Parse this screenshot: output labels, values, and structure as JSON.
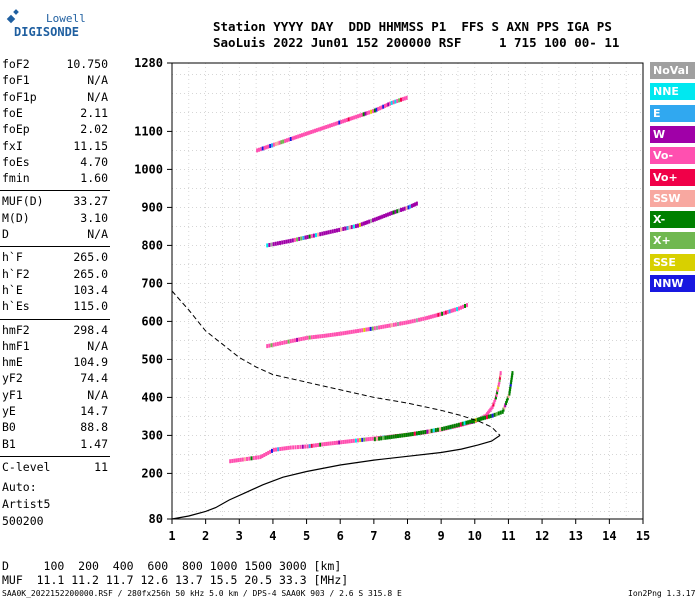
{
  "logo": {
    "line1": "Lowell",
    "line2": "DIGISONDE"
  },
  "header": {
    "line1": "Station YYYY DAY  DDD HHMMSS P1  FFS S AXN PPS IGA PS",
    "line2": "SaoLuis 2022 Jun01 152 200000 RSF     1 715 100 00- 11"
  },
  "parameters": {
    "group1": [
      {
        "k": "foF2",
        "v": "10.750"
      },
      {
        "k": "foF1",
        "v": "N/A"
      },
      {
        "k": "foF1p",
        "v": "N/A"
      },
      {
        "k": "foE",
        "v": "2.11"
      },
      {
        "k": "foEp",
        "v": "2.02"
      },
      {
        "k": "fxI",
        "v": "11.15"
      },
      {
        "k": "foEs",
        "v": "4.70"
      },
      {
        "k": "fmin",
        "v": "1.60"
      }
    ],
    "group2": [
      {
        "k": "MUF(D)",
        "v": "33.27"
      },
      {
        "k": "M(D)",
        "v": "3.10"
      },
      {
        "k": "D",
        "v": "N/A"
      }
    ],
    "group3": [
      {
        "k": "h`F",
        "v": "265.0"
      },
      {
        "k": "h`F2",
        "v": "265.0"
      },
      {
        "k": "h`E",
        "v": "103.4"
      },
      {
        "k": "h`Es",
        "v": "115.0"
      }
    ],
    "group4": [
      {
        "k": "hmF2",
        "v": "298.4"
      },
      {
        "k": "hmF1",
        "v": "N/A"
      },
      {
        "k": "hmE",
        "v": "104.9"
      },
      {
        "k": "yF2",
        "v": "74.4"
      },
      {
        "k": "yF1",
        "v": "N/A"
      },
      {
        "k": "yE",
        "v": "14.7"
      },
      {
        "k": "B0",
        "v": "88.8"
      },
      {
        "k": "B1",
        "v": "1.47"
      }
    ],
    "group5": [
      {
        "k": "C-level",
        "v": "11"
      }
    ]
  },
  "auto": {
    "line1": "Auto:",
    "line2": "Artist5",
    "line3": "500200"
  },
  "legend": [
    {
      "label": "NoVal",
      "color": "#a0a0a0"
    },
    {
      "label": "NNE",
      "color": "#00e8f0"
    },
    {
      "label": "E",
      "color": "#30a8f0"
    },
    {
      "label": "W",
      "color": "#a000a8"
    },
    {
      "label": "Vo-",
      "color": "#ff50b0"
    },
    {
      "label": "Vo+",
      "color": "#f00048"
    },
    {
      "label": "SSW",
      "color": "#f8a8a0"
    },
    {
      "label": "X-",
      "color": "#008000"
    },
    {
      "label": "X+",
      "color": "#70b850"
    },
    {
      "label": "SSE",
      "color": "#d8d000"
    },
    {
      "label": "NNW",
      "color": "#1818e0"
    }
  ],
  "bottom": {
    "line1": "D     100  200  400  600  800 1000 1500 3000 [km]",
    "line2": "MUF  11.1 11.2 11.7 12.6 13.7 15.5 20.5 33.3 [MHz]",
    "file_info": "SAA0K_2022152200000.RSF / 280fx256h 50 kHz 5.0 km / DPS-4 SAA0K 903 / 2.6 S 315.8 E",
    "version": "Ion2Png 1.3.17"
  },
  "chart_data": {
    "type": "scatter",
    "title": "",
    "xlabel": "",
    "ylabel": "",
    "xlim": [
      1,
      15
    ],
    "ylim": [
      80,
      1280
    ],
    "x_ticks": [
      1,
      2,
      3,
      4,
      5,
      6,
      7,
      8,
      9,
      10,
      11,
      12,
      13,
      14,
      15
    ],
    "y_ticks": [
      80,
      200,
      300,
      400,
      500,
      600,
      700,
      800,
      900,
      1000,
      1100,
      1280
    ],
    "grid": true,
    "traces": [
      {
        "name": "O-trace F2",
        "color": "#ff50b0",
        "points": [
          [
            2.7,
            232
          ],
          [
            3.2,
            238
          ],
          [
            3.6,
            243
          ],
          [
            4.0,
            262
          ],
          [
            4.5,
            268
          ],
          [
            5.0,
            271
          ],
          [
            5.5,
            277
          ],
          [
            6.0,
            282
          ],
          [
            6.5,
            287
          ],
          [
            7.0,
            292
          ],
          [
            7.5,
            297
          ],
          [
            8.0,
            302
          ],
          [
            8.5,
            308
          ],
          [
            9.0,
            316
          ],
          [
            9.5,
            326
          ],
          [
            10.0,
            338
          ],
          [
            10.3,
            352
          ],
          [
            10.5,
            375
          ],
          [
            10.6,
            400
          ],
          [
            10.7,
            440
          ],
          [
            10.75,
            470
          ]
        ]
      },
      {
        "name": "X-trace F2",
        "color": "#008000",
        "points": [
          [
            7.0,
            290
          ],
          [
            7.5,
            296
          ],
          [
            8.0,
            302
          ],
          [
            8.5,
            309
          ],
          [
            9.0,
            317
          ],
          [
            9.5,
            328
          ],
          [
            10.0,
            340
          ],
          [
            10.5,
            352
          ],
          [
            10.8,
            362
          ],
          [
            10.9,
            385
          ],
          [
            11.0,
            410
          ],
          [
            11.05,
            440
          ],
          [
            11.1,
            470
          ]
        ]
      },
      {
        "name": "second hop",
        "color": "#ff50b0",
        "points": [
          [
            3.8,
            535
          ],
          [
            4.5,
            548
          ],
          [
            5.0,
            557
          ],
          [
            5.5,
            562
          ],
          [
            6.0,
            568
          ],
          [
            6.5,
            575
          ],
          [
            7.0,
            582
          ],
          [
            7.5,
            590
          ],
          [
            8.0,
            598
          ],
          [
            8.5,
            608
          ],
          [
            9.0,
            620
          ],
          [
            9.5,
            634
          ],
          [
            9.8,
            645
          ]
        ]
      },
      {
        "name": "third hop",
        "color": "#a000a8",
        "points": [
          [
            3.8,
            800
          ],
          [
            4.5,
            812
          ],
          [
            5.0,
            822
          ],
          [
            5.5,
            832
          ],
          [
            6.0,
            842
          ],
          [
            6.5,
            852
          ],
          [
            7.0,
            868
          ],
          [
            7.5,
            885
          ],
          [
            8.0,
            900
          ],
          [
            8.3,
            912
          ]
        ]
      },
      {
        "name": "fourth hop",
        "color": "#ff50b0",
        "points": [
          [
            3.5,
            1050
          ],
          [
            4.0,
            1065
          ],
          [
            4.5,
            1080
          ],
          [
            5.0,
            1095
          ],
          [
            5.5,
            1110
          ],
          [
            6.0,
            1125
          ],
          [
            6.5,
            1140
          ],
          [
            7.0,
            1155
          ],
          [
            7.5,
            1175
          ],
          [
            8.0,
            1190
          ]
        ]
      }
    ],
    "profile_curve_dashed": [
      [
        1.0,
        680
      ],
      [
        1.5,
        630
      ],
      [
        2.0,
        575
      ],
      [
        2.5,
        540
      ],
      [
        3.0,
        505
      ],
      [
        3.5,
        480
      ],
      [
        4.0,
        460
      ],
      [
        5.0,
        440
      ],
      [
        6.0,
        420
      ],
      [
        7.0,
        400
      ],
      [
        8.0,
        385
      ],
      [
        9.0,
        366
      ],
      [
        9.6,
        352
      ],
      [
        10.1,
        338
      ],
      [
        10.5,
        322
      ],
      [
        10.75,
        300
      ]
    ],
    "profile_curve_solid": [
      [
        1.0,
        80
      ],
      [
        1.5,
        88
      ],
      [
        2.0,
        100
      ],
      [
        2.3,
        110
      ],
      [
        2.7,
        130
      ],
      [
        3.2,
        150
      ],
      [
        3.7,
        170
      ],
      [
        4.3,
        190
      ],
      [
        5.0,
        205
      ],
      [
        6.0,
        222
      ],
      [
        7.0,
        235
      ],
      [
        8.0,
        245
      ],
      [
        9.0,
        255
      ],
      [
        9.6,
        264
      ],
      [
        10.1,
        275
      ],
      [
        10.5,
        285
      ],
      [
        10.75,
        300
      ]
    ]
  }
}
